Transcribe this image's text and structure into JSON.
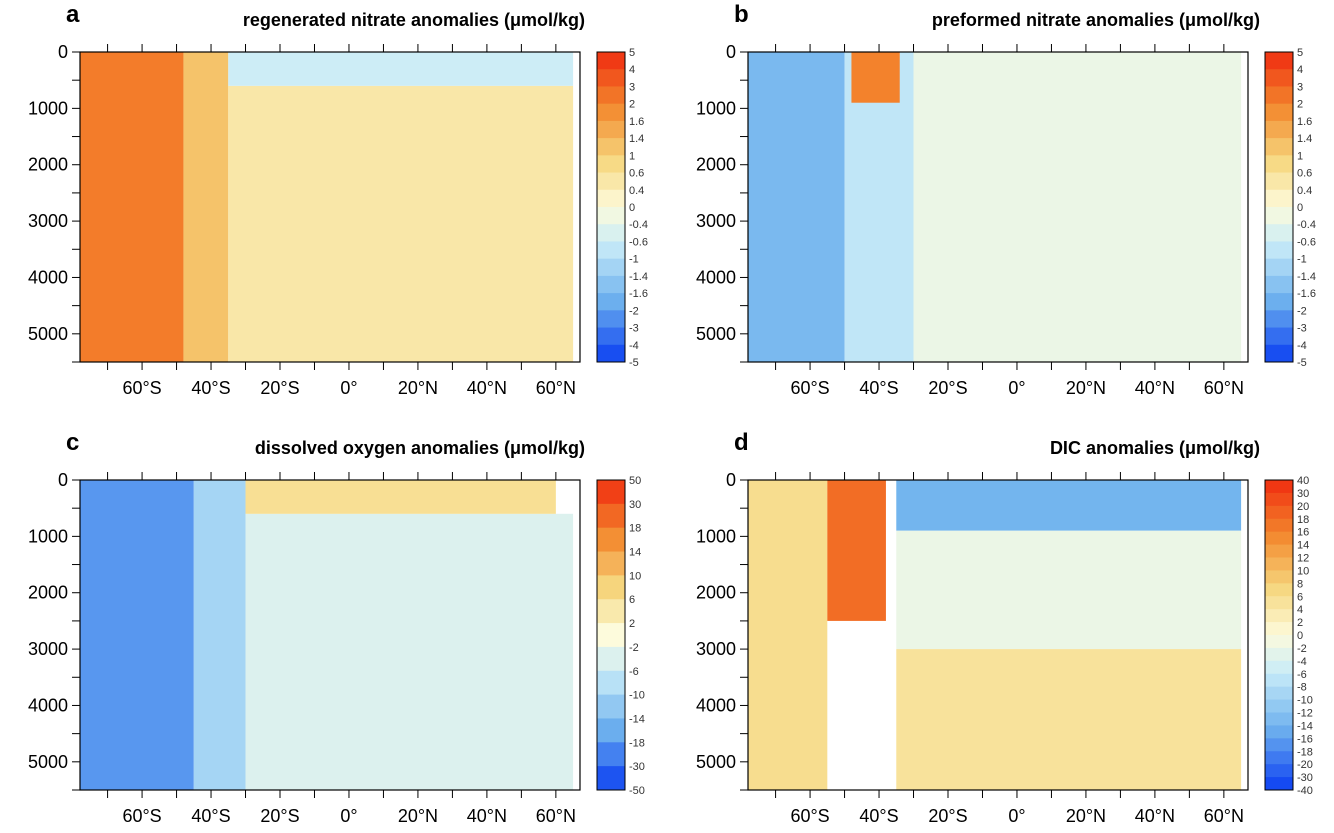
{
  "chart_data": [
    {
      "type": "heatmap",
      "panel": "a",
      "title": "regenerated nitrate anomalies (μmol/kg)",
      "x_ticks": [
        "60°S",
        "40°S",
        "20°S",
        "0°",
        "20°N",
        "40°N",
        "60°N"
      ],
      "y_ticks": [
        "0",
        "1000",
        "2000",
        "3000",
        "4000",
        "5000"
      ],
      "xlim": [
        -78,
        67
      ],
      "ylim": [
        5500,
        0
      ],
      "colorbar_labels": [
        "5",
        "4",
        "3",
        "2",
        "1.6",
        "1.4",
        "1",
        "0.6",
        "0.4",
        "0",
        "-0.4",
        "-0.6",
        "-1",
        "-1.4",
        "-1.6",
        "-2",
        "-3",
        "-4",
        "-5"
      ],
      "regions": [
        {
          "lat": [
            -78,
            -48
          ],
          "depth": [
            0,
            5500
          ],
          "value": 2.2
        },
        {
          "lat": [
            -48,
            -35
          ],
          "depth": [
            0,
            5500
          ],
          "value": 1.2
        },
        {
          "lat": [
            -35,
            65
          ],
          "depth": [
            600,
            5500
          ],
          "value": 0.5
        },
        {
          "lat": [
            -35,
            65
          ],
          "depth": [
            0,
            600
          ],
          "value": -0.6
        }
      ]
    },
    {
      "type": "heatmap",
      "panel": "b",
      "title": "preformed nitrate anomalies (μmol/kg)",
      "x_ticks": [
        "60°S",
        "40°S",
        "20°S",
        "0°",
        "20°N",
        "40°N",
        "60°N"
      ],
      "y_ticks": [
        "0",
        "1000",
        "2000",
        "3000",
        "4000",
        "5000"
      ],
      "xlim": [
        -78,
        67
      ],
      "ylim": [
        5500,
        0
      ],
      "colorbar_labels": [
        "5",
        "4",
        "3",
        "2",
        "1.6",
        "1.4",
        "1",
        "0.6",
        "0.4",
        "0",
        "-0.4",
        "-0.6",
        "-1",
        "-1.4",
        "-1.6",
        "-2",
        "-3",
        "-4",
        "-5"
      ],
      "regions": [
        {
          "lat": [
            -78,
            -50
          ],
          "depth": [
            0,
            5500
          ],
          "value": -1.6
        },
        {
          "lat": [
            -50,
            -30
          ],
          "depth": [
            0,
            5500
          ],
          "value": -0.8
        },
        {
          "lat": [
            -48,
            -34
          ],
          "depth": [
            0,
            900
          ],
          "value": 2
        },
        {
          "lat": [
            -30,
            65
          ],
          "depth": [
            0,
            5500
          ],
          "value": -0.3
        }
      ]
    },
    {
      "type": "heatmap",
      "panel": "c",
      "title": "dissolved oxygen anomalies (μmol/kg)",
      "x_ticks": [
        "60°S",
        "40°S",
        "20°S",
        "0°",
        "20°N",
        "40°N",
        "60°N"
      ],
      "y_ticks": [
        "0",
        "1000",
        "2000",
        "3000",
        "4000",
        "5000"
      ],
      "xlim": [
        -78,
        67
      ],
      "ylim": [
        5500,
        0
      ],
      "colorbar_labels": [
        "50",
        "30",
        "18",
        "14",
        "10",
        "6",
        "2",
        "-2",
        "-6",
        "-10",
        "-14",
        "-18",
        "-30",
        "-50"
      ],
      "regions": [
        {
          "lat": [
            -78,
            -45
          ],
          "depth": [
            0,
            5500
          ],
          "value": -18
        },
        {
          "lat": [
            -45,
            -30
          ],
          "depth": [
            0,
            5500
          ],
          "value": -10
        },
        {
          "lat": [
            -30,
            65
          ],
          "depth": [
            600,
            5500
          ],
          "value": -4
        },
        {
          "lat": [
            -30,
            60
          ],
          "depth": [
            0,
            600
          ],
          "value": 6
        }
      ]
    },
    {
      "type": "heatmap",
      "panel": "d",
      "title": "DIC anomalies (μmol/kg)",
      "x_ticks": [
        "60°S",
        "40°S",
        "20°S",
        "0°",
        "20°N",
        "40°N",
        "60°N"
      ],
      "y_ticks": [
        "0",
        "1000",
        "2000",
        "3000",
        "4000",
        "5000"
      ],
      "xlim": [
        -78,
        67
      ],
      "ylim": [
        5500,
        0
      ],
      "colorbar_labels": [
        "40",
        "30",
        "20",
        "18",
        "16",
        "14",
        "12",
        "10",
        "8",
        "6",
        "4",
        "2",
        "0",
        "-2",
        "-4",
        "-6",
        "-8",
        "-10",
        "-12",
        "-14",
        "-16",
        "-18",
        "-20",
        "-30",
        "-40"
      ],
      "regions": [
        {
          "lat": [
            -78,
            -55
          ],
          "depth": [
            0,
            5500
          ],
          "value": 6
        },
        {
          "lat": [
            -55,
            -38
          ],
          "depth": [
            0,
            2500
          ],
          "value": 18
        },
        {
          "lat": [
            -35,
            65
          ],
          "depth": [
            0,
            900
          ],
          "value": -14
        },
        {
          "lat": [
            -35,
            65
          ],
          "depth": [
            900,
            3000
          ],
          "value": -2
        },
        {
          "lat": [
            -35,
            65
          ],
          "depth": [
            3000,
            5500
          ],
          "value": 5
        }
      ]
    }
  ]
}
